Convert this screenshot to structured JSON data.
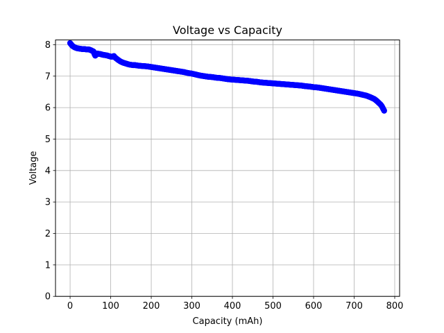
{
  "chart_data": {
    "type": "scatter",
    "title": "Voltage vs Capacity",
    "xlabel": "Capacity (mAh)",
    "ylabel": "Voltage",
    "xlim": [
      -36,
      812
    ],
    "ylim": [
      0,
      8.15
    ],
    "xticks": [
      0,
      100,
      200,
      300,
      400,
      500,
      600,
      700,
      800
    ],
    "yticks": [
      0,
      1,
      2,
      3,
      4,
      5,
      6,
      7,
      8
    ],
    "grid": true,
    "legend": "none",
    "colors": {
      "series": "#0000ff",
      "grid": "#b0b0b0",
      "axes": "#000000"
    },
    "series": [
      {
        "points": [
          [
            0,
            8.05
          ],
          [
            2,
            8.02
          ],
          [
            5,
            7.97
          ],
          [
            8,
            7.94
          ],
          [
            12,
            7.91
          ],
          [
            16,
            7.89
          ],
          [
            20,
            7.88
          ],
          [
            25,
            7.87
          ],
          [
            30,
            7.86
          ],
          [
            35,
            7.86
          ],
          [
            40,
            7.85
          ],
          [
            45,
            7.85
          ],
          [
            48,
            7.84
          ],
          [
            52,
            7.82
          ],
          [
            55,
            7.8
          ],
          [
            58,
            7.78
          ],
          [
            60,
            7.7
          ],
          [
            62,
            7.65
          ],
          [
            64,
            7.68
          ],
          [
            67,
            7.72
          ],
          [
            70,
            7.71
          ],
          [
            75,
            7.7
          ],
          [
            80,
            7.68
          ],
          [
            85,
            7.67
          ],
          [
            90,
            7.66
          ],
          [
            95,
            7.64
          ],
          [
            100,
            7.62
          ],
          [
            105,
            7.62
          ],
          [
            108,
            7.64
          ],
          [
            110,
            7.6
          ],
          [
            115,
            7.55
          ],
          [
            120,
            7.5
          ],
          [
            125,
            7.46
          ],
          [
            130,
            7.43
          ],
          [
            135,
            7.41
          ],
          [
            140,
            7.39
          ],
          [
            145,
            7.37
          ],
          [
            150,
            7.36
          ],
          [
            155,
            7.35
          ],
          [
            160,
            7.35
          ],
          [
            165,
            7.34
          ],
          [
            170,
            7.33
          ],
          [
            180,
            7.32
          ],
          [
            190,
            7.31
          ],
          [
            200,
            7.29
          ],
          [
            210,
            7.27
          ],
          [
            220,
            7.25
          ],
          [
            230,
            7.23
          ],
          [
            240,
            7.21
          ],
          [
            250,
            7.19
          ],
          [
            260,
            7.17
          ],
          [
            270,
            7.15
          ],
          [
            280,
            7.13
          ],
          [
            290,
            7.1
          ],
          [
            300,
            7.08
          ],
          [
            310,
            7.05
          ],
          [
            320,
            7.02
          ],
          [
            330,
            7.0
          ],
          [
            340,
            6.98
          ],
          [
            350,
            6.97
          ],
          [
            360,
            6.95
          ],
          [
            370,
            6.94
          ],
          [
            380,
            6.92
          ],
          [
            390,
            6.9
          ],
          [
            400,
            6.89
          ],
          [
            410,
            6.88
          ],
          [
            420,
            6.87
          ],
          [
            430,
            6.86
          ],
          [
            440,
            6.85
          ],
          [
            450,
            6.83
          ],
          [
            460,
            6.82
          ],
          [
            470,
            6.8
          ],
          [
            480,
            6.79
          ],
          [
            490,
            6.78
          ],
          [
            500,
            6.77
          ],
          [
            510,
            6.76
          ],
          [
            520,
            6.75
          ],
          [
            530,
            6.74
          ],
          [
            540,
            6.73
          ],
          [
            550,
            6.72
          ],
          [
            560,
            6.71
          ],
          [
            570,
            6.7
          ],
          [
            580,
            6.68
          ],
          [
            590,
            6.67
          ],
          [
            600,
            6.65
          ],
          [
            610,
            6.64
          ],
          [
            620,
            6.62
          ],
          [
            630,
            6.6
          ],
          [
            640,
            6.58
          ],
          [
            650,
            6.56
          ],
          [
            660,
            6.54
          ],
          [
            670,
            6.52
          ],
          [
            680,
            6.5
          ],
          [
            690,
            6.48
          ],
          [
            700,
            6.46
          ],
          [
            710,
            6.44
          ],
          [
            720,
            6.41
          ],
          [
            730,
            6.38
          ],
          [
            740,
            6.33
          ],
          [
            750,
            6.27
          ],
          [
            755,
            6.22
          ],
          [
            760,
            6.16
          ],
          [
            765,
            6.1
          ],
          [
            768,
            6.05
          ],
          [
            770,
            6.0
          ],
          [
            772,
            5.95
          ],
          [
            774,
            5.9
          ]
        ]
      }
    ]
  }
}
